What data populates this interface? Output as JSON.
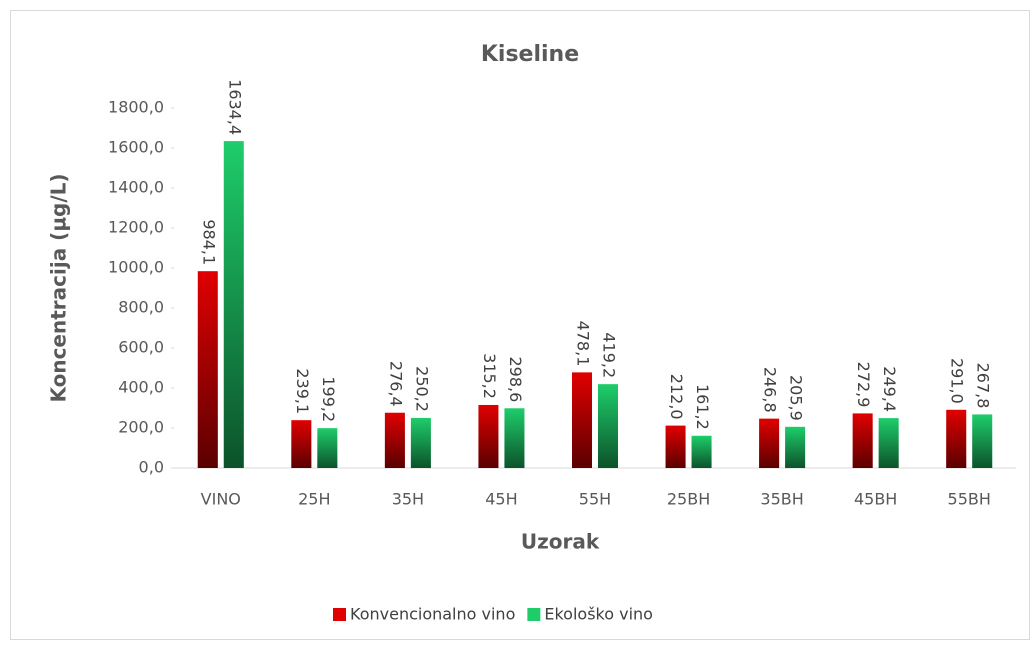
{
  "chart_data": {
    "type": "bar",
    "title": "Kiseline",
    "xlabel": "Uzorak",
    "ylabel": "Koncentracija  (µg/L)",
    "categories": [
      "VINO",
      "25H",
      "35H",
      "45H",
      "55H",
      "25BH",
      "35BH",
      "45BH",
      "55BH"
    ],
    "series": [
      {
        "name": "Konvencionalno vino",
        "color": "#e00000",
        "values": [
          984.1,
          239.1,
          276.4,
          315.2,
          478.1,
          212.0,
          246.8,
          272.9,
          291.0
        ],
        "value_labels": [
          "984,1",
          "239,1",
          "276,4",
          "315,2",
          "478,1",
          "212,0",
          "246,8",
          "272,9",
          "291,0"
        ]
      },
      {
        "name": "Ekološko vino",
        "color": "#1ecd6a",
        "values": [
          1634.4,
          199.2,
          250.2,
          298.6,
          419.2,
          161.2,
          205.9,
          249.4,
          267.8
        ],
        "value_labels": [
          "1634,4",
          "199,2",
          "250,2",
          "298,6",
          "419,2",
          "161,2",
          "205,9",
          "249,4",
          "267,8"
        ]
      }
    ],
    "ylim": [
      0,
      1800
    ],
    "yticks": [
      {
        "value": 0,
        "label": "0,0"
      },
      {
        "value": 200,
        "label": "200,0"
      },
      {
        "value": 400,
        "label": "400,0"
      },
      {
        "value": 600,
        "label": "600,0"
      },
      {
        "value": 800,
        "label": "800,0"
      },
      {
        "value": 1000,
        "label": "1000,0"
      },
      {
        "value": 1200,
        "label": "1200,0"
      },
      {
        "value": 1400,
        "label": "1400,0"
      },
      {
        "value": 1600,
        "label": "1600,0"
      },
      {
        "value": 1800,
        "label": "1800,0"
      }
    ],
    "legend": "bottom"
  }
}
